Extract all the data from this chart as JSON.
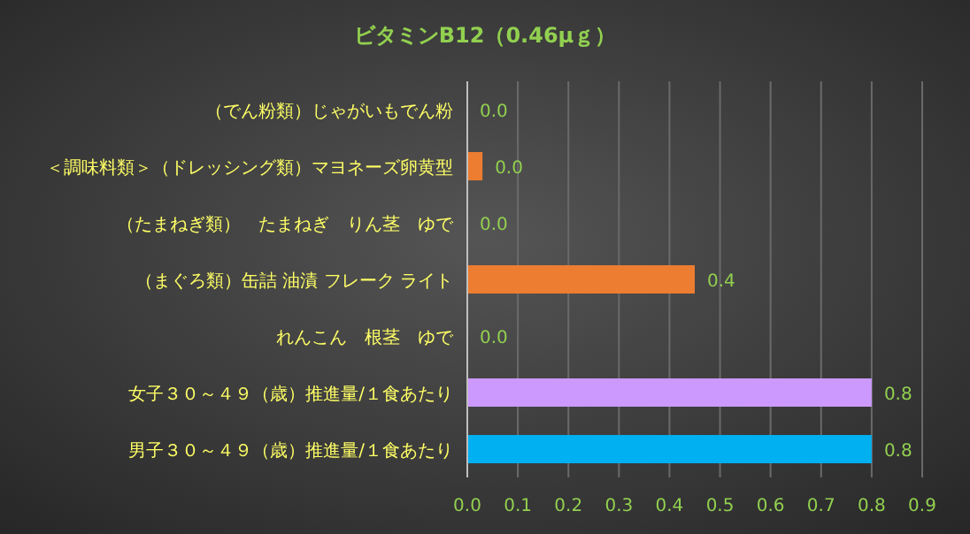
{
  "chart_data": {
    "type": "bar",
    "orientation": "horizontal",
    "title": "ビタミンB12（0.46μｇ）",
    "categories": [
      "（でん粉類）じゃがいもでん粉",
      "＜調味料類＞（ドレッシング類）マヨネーズ卵黄型",
      "（たまねぎ類）　たまねぎ　りん茎　ゆで",
      "（まぐろ類）缶詰 油漬 フレーク ライト",
      "れんこん　根茎　ゆで",
      "女子３０～４９（歳）推進量/１食あたり",
      "男子３０～４９（歳）推進量/１食あたり"
    ],
    "values": [
      0,
      0.03,
      0,
      0.45,
      0,
      0.8,
      0.8
    ],
    "colors": [
      "#ed7d31",
      "#ed7d31",
      "#ed7d31",
      "#ed7d31",
      "#ed7d31",
      "#cc99ff",
      "#00b0f0"
    ],
    "value_labels": [
      "0.0",
      "0.0",
      "0.0",
      "0.4",
      "0.0",
      "0.8",
      "0.8"
    ],
    "xlim": [
      0,
      0.9
    ],
    "xticks": [
      {
        "value": 0,
        "label": "0.0"
      },
      0.1,
      0.2,
      0.3,
      0.4,
      0.5,
      0.6,
      0.7,
      0.8,
      0.9
    ],
    "grid": "x"
  }
}
